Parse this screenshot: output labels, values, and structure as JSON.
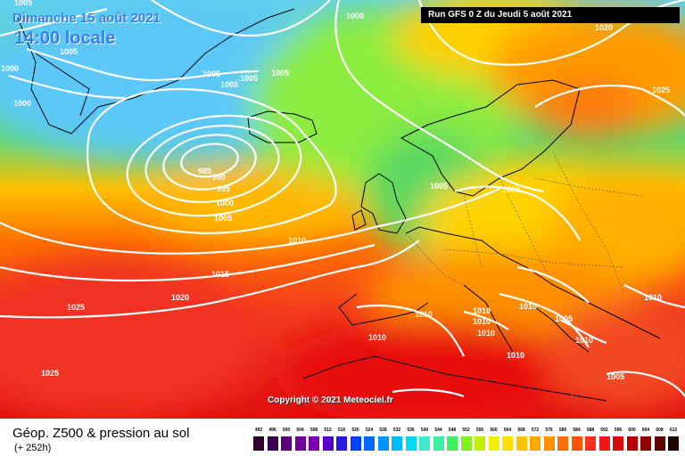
{
  "header": {
    "date": "Dimanche 15 août 2021",
    "time": "14:00 locale",
    "run_info": "Run GFS 0 Z du Jeudi 5 août 2021"
  },
  "copyright": "Copyright © 2021 Meteociel.fr",
  "footer": {
    "title": "Géop. Z500 & pression au sol",
    "subtitle": "(+ 252h)"
  },
  "legend": {
    "labels": [
      "492",
      "496",
      "500",
      "504",
      "508",
      "512",
      "516",
      "520",
      "524",
      "528",
      "532",
      "536",
      "540",
      "544",
      "548",
      "552",
      "556",
      "560",
      "564",
      "568",
      "572",
      "576",
      "580",
      "584",
      "588",
      "592",
      "596",
      "600",
      "604",
      "608",
      "612"
    ],
    "colors": [
      "#2a002a",
      "#3c0050",
      "#5a007a",
      "#700099",
      "#8000b0",
      "#5a00c8",
      "#2a1ae0",
      "#0040ff",
      "#0068ff",
      "#0094ff",
      "#00bbff",
      "#00d8f0",
      "#40e8d0",
      "#3cf0a0",
      "#40f060",
      "#80f020",
      "#c0f000",
      "#f0f000",
      "#ffe000",
      "#ffc000",
      "#ffa800",
      "#ff9000",
      "#ff7000",
      "#ff5500",
      "#ff3020",
      "#f01818",
      "#d80c0c",
      "#b80000",
      "#900000",
      "#600000",
      "#200000"
    ]
  },
  "map": {
    "isobar_color": "#ffffff",
    "isobar_labels": [
      {
        "id": "1005-nw-top",
        "text": "1005"
      },
      {
        "id": "1000-north",
        "text": "1000"
      },
      {
        "id": "1005-greenland",
        "text": "1005"
      },
      {
        "id": "1000-west",
        "text": "1000"
      },
      {
        "id": "1005-a",
        "text": "1005"
      },
      {
        "id": "1005-b",
        "text": "1005"
      },
      {
        "id": "1005-c",
        "text": "1005"
      },
      {
        "id": "1005-d",
        "text": "1005"
      },
      {
        "id": "1000-labrador",
        "text": "1000"
      },
      {
        "id": "985-low",
        "text": "985"
      },
      {
        "id": "990-low",
        "text": "990"
      },
      {
        "id": "995-low",
        "text": "995"
      },
      {
        "id": "1000-low",
        "text": "1000"
      },
      {
        "id": "1005-low",
        "text": "1005"
      },
      {
        "id": "1010-atlantic",
        "text": "1010"
      },
      {
        "id": "1015-atlantic",
        "text": "1015"
      },
      {
        "id": "1020-atlantic",
        "text": "1020"
      },
      {
        "id": "1025-azores",
        "text": "1025"
      },
      {
        "id": "1025-southwest",
        "text": "1025"
      },
      {
        "id": "1020-ne",
        "text": "1020"
      },
      {
        "id": "1025-scandinavia",
        "text": "1025"
      },
      {
        "id": "1005-northsea",
        "text": "1005"
      },
      {
        "id": "1010-poland",
        "text": "1010"
      },
      {
        "id": "1010-spain",
        "text": "1010"
      },
      {
        "id": "1010-med1",
        "text": "1010"
      },
      {
        "id": "1010-med2",
        "text": "1010"
      },
      {
        "id": "1010-med3",
        "text": "1010"
      },
      {
        "id": "1010-balkans",
        "text": "1010"
      },
      {
        "id": "1010-italy",
        "text": "1010"
      },
      {
        "id": "1005-greece",
        "text": "1005"
      },
      {
        "id": "1010-turkey",
        "text": "1010"
      },
      {
        "id": "1010-east",
        "text": "1010"
      },
      {
        "id": "1010-africa",
        "text": "1010"
      },
      {
        "id": "1005-levant",
        "text": "1005"
      }
    ]
  }
}
